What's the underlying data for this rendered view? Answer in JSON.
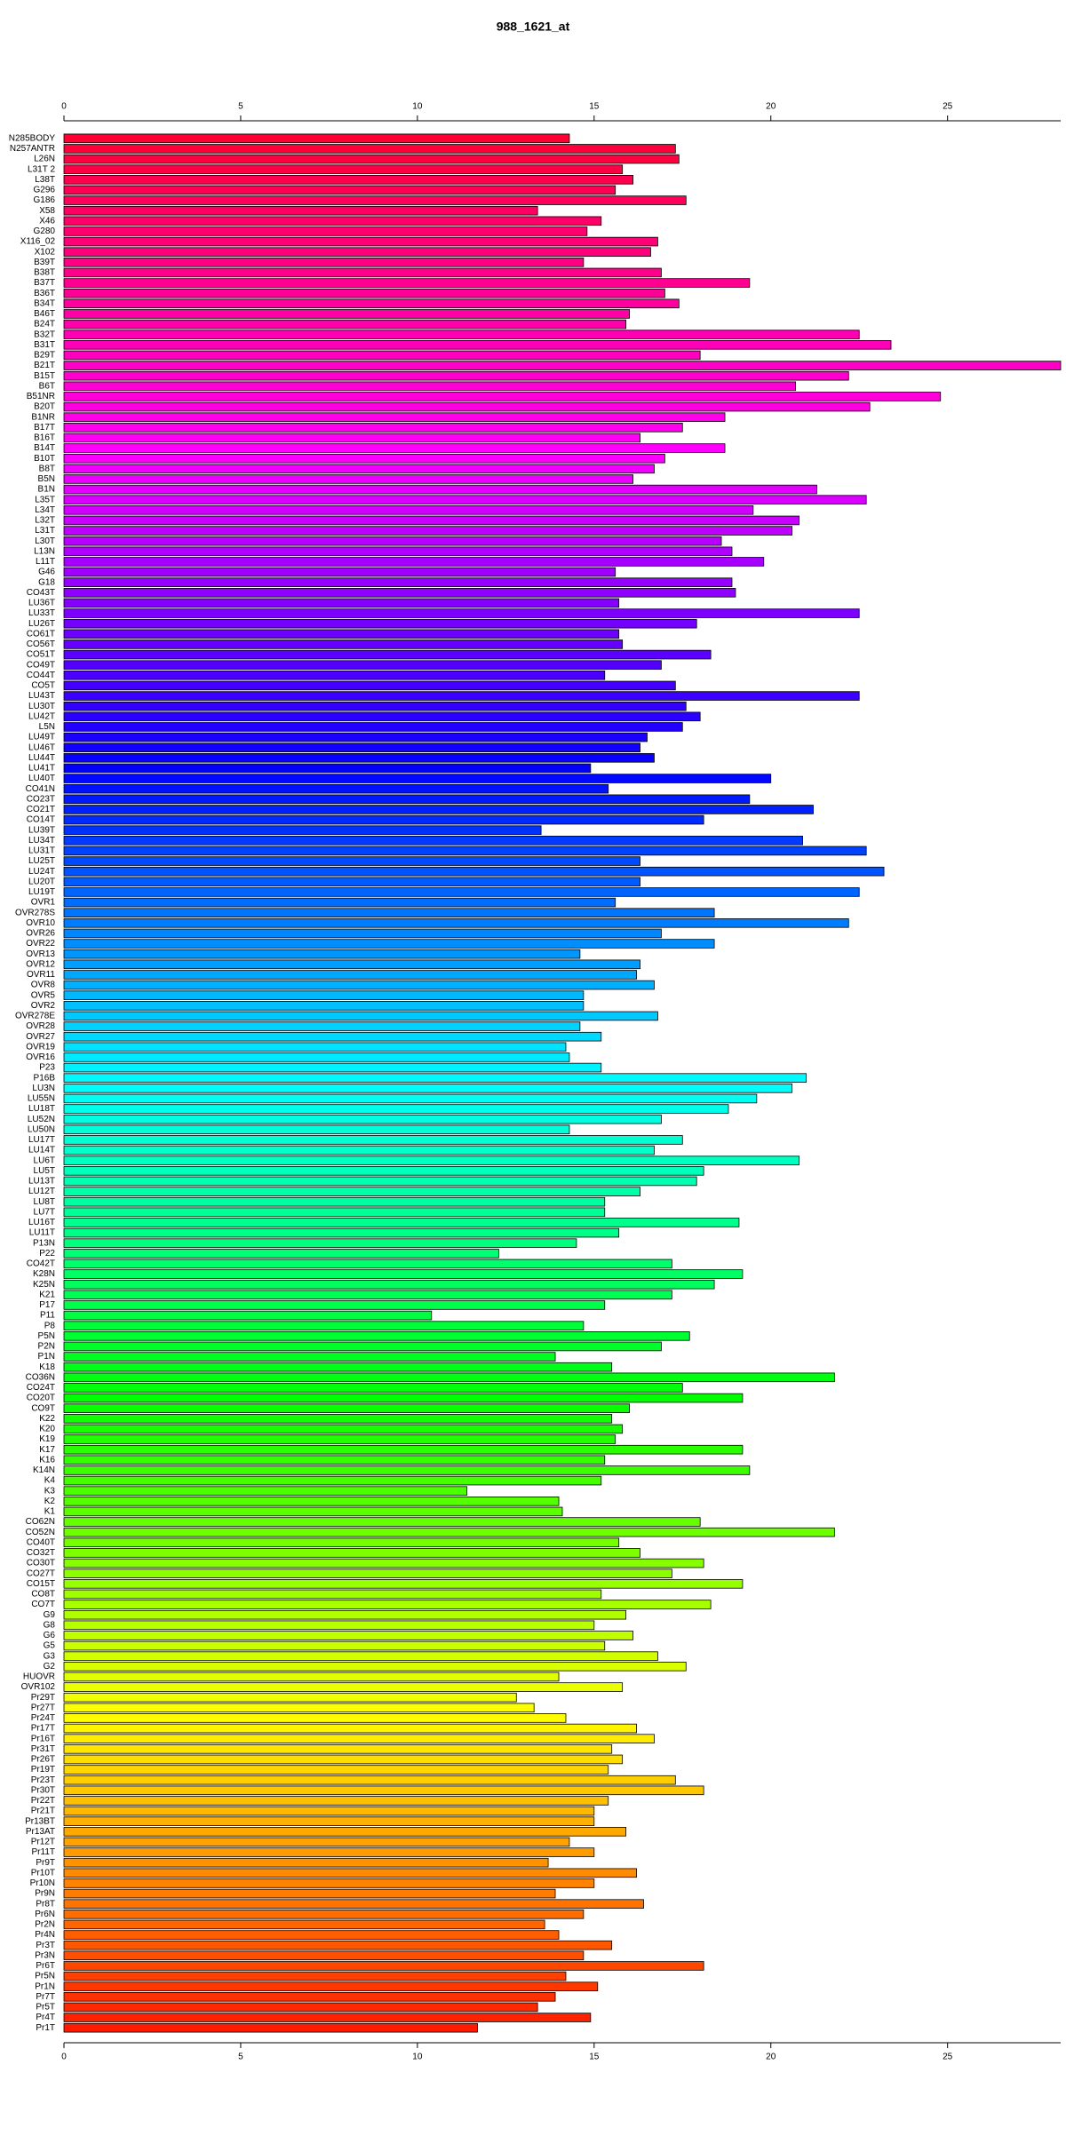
{
  "chart_data": {
    "type": "barh",
    "title": "988_1621_at",
    "categories": [
      "N285BODY",
      "N257ANTR",
      "L26N",
      "L31T 2",
      "L38T",
      "G296",
      "G186",
      "X58",
      "X46",
      "G280",
      "X116_02",
      "X102",
      "B39T",
      "B38T",
      "B37T",
      "B36T",
      "B34T",
      "B46T",
      "B24T",
      "B32T",
      "B31T",
      "B29T",
      "B21T",
      "B15T",
      "B6T",
      "B51NR",
      "B20T",
      "B1NR",
      "B17T",
      "B16T",
      "B14T",
      "B10T",
      "B8T",
      "B5N",
      "B1N",
      "L35T",
      "L34T",
      "L32T",
      "L31T",
      "L30T",
      "L13N",
      "L11T",
      "G46",
      "G18",
      "CO43T",
      "LU36T",
      "LU33T",
      "LU26T",
      "CO61T",
      "CO56T",
      "CO51T",
      "CO49T",
      "CO44T",
      "CO5T",
      "LU43T",
      "LU30T",
      "LU42T",
      "L5N",
      "LU49T",
      "LU46T",
      "LU44T",
      "LU41T",
      "LU40T",
      "CO41N",
      "CO23T",
      "CO21T",
      "CO14T",
      "LU39T",
      "LU34T",
      "LU31T",
      "LU25T",
      "LU24T",
      "LU20T",
      "LU19T",
      "OVR1",
      "OVR278S",
      "OVR10",
      "OVR26",
      "OVR22",
      "OVR13",
      "OVR12",
      "OVR11",
      "OVR8",
      "OVR5",
      "OVR2",
      "OVR278E",
      "OVR28",
      "OVR27",
      "OVR19",
      "OVR16",
      "P23",
      "P16B",
      "LU3N",
      "LU55N",
      "LU18T",
      "LU52N",
      "LU50N",
      "LU17T",
      "LU14T",
      "LU6T",
      "LU5T",
      "LU13T",
      "LU12T",
      "LU8T",
      "LU7T",
      "LU16T",
      "LU11T",
      "P13N",
      "P22",
      "CO42T",
      "K28N",
      "K25N",
      "K21",
      "P17",
      "P11",
      "P8",
      "P5N",
      "P2N",
      "P1N",
      "K18",
      "CO36N",
      "CO24T",
      "CO20T",
      "CO9T",
      "K22",
      "K20",
      "K19",
      "K17",
      "K16",
      "K14N",
      "K4",
      "K3",
      "K2",
      "K1",
      "CO62N",
      "CO52N",
      "CO40T",
      "CO32T",
      "CO30T",
      "CO27T",
      "CO15T",
      "CO8T",
      "CO7T",
      "G9",
      "G8",
      "G6",
      "G5",
      "G3",
      "G2",
      "HUOVR",
      "OVR102",
      "Pr29T",
      "Pr27T",
      "Pr24T",
      "Pr17T",
      "Pr16T",
      "Pr31T",
      "Pr26T",
      "Pr19T",
      "Pr23T",
      "Pr30T",
      "Pr22T",
      "Pr21T",
      "Pr13BT",
      "Pr13AT",
      "Pr12T",
      "Pr11T",
      "Pr9T",
      "Pr10T",
      "Pr10N",
      "Pr9N",
      "Pr8T",
      "Pr6N",
      "Pr2N",
      "Pr4N",
      "Pr3T",
      "Pr3N",
      "Pr6T",
      "Pr5N",
      "Pr1N",
      "Pr7T",
      "Pr5T",
      "Pr4T",
      "Pr1T"
    ],
    "values": [
      14.3,
      17.3,
      17.4,
      15.8,
      16.1,
      15.6,
      17.6,
      13.4,
      15.2,
      14.8,
      16.8,
      16.6,
      14.7,
      16.9,
      19.4,
      17.0,
      17.4,
      16.0,
      15.9,
      22.5,
      23.4,
      18.0,
      28.2,
      22.2,
      20.7,
      24.8,
      22.8,
      18.7,
      17.5,
      16.3,
      18.7,
      17.0,
      16.7,
      16.1,
      21.3,
      22.7,
      19.5,
      20.8,
      20.6,
      18.6,
      18.9,
      19.8,
      15.6,
      18.9,
      19.0,
      15.7,
      22.5,
      17.9,
      15.7,
      15.8,
      18.3,
      16.9,
      15.3,
      17.3,
      22.5,
      17.6,
      18.0,
      17.5,
      16.5,
      16.3,
      16.7,
      14.9,
      20.0,
      15.4,
      19.4,
      21.2,
      18.1,
      13.5,
      20.9,
      22.7,
      16.3,
      23.2,
      16.3,
      22.5,
      15.6,
      18.4,
      22.2,
      16.9,
      18.4,
      14.6,
      16.3,
      16.2,
      16.7,
      14.7,
      14.7,
      16.8,
      14.6,
      15.2,
      14.2,
      14.3,
      15.2,
      21.0,
      20.6,
      19.6,
      18.8,
      16.9,
      14.3,
      17.5,
      16.7,
      20.8,
      18.1,
      17.9,
      16.3,
      15.3,
      15.3,
      19.1,
      15.7,
      14.5,
      12.3,
      17.2,
      19.2,
      18.4,
      17.2,
      15.3,
      10.4,
      14.7,
      17.7,
      16.9,
      13.9,
      15.5,
      21.8,
      17.5,
      19.2,
      16.0,
      15.5,
      15.8,
      15.6,
      19.2,
      15.3,
      19.4,
      15.2,
      11.4,
      14.0,
      14.1,
      18.0,
      21.8,
      15.7,
      16.3,
      18.1,
      17.2,
      19.2,
      15.2,
      18.3,
      15.9,
      15.0,
      16.1,
      15.3,
      16.8,
      17.6,
      14.0,
      15.8,
      12.8,
      13.3,
      14.2,
      16.2,
      16.7,
      15.5,
      15.8,
      15.4,
      17.3,
      18.1,
      15.4,
      15.0,
      15.0,
      15.9,
      14.3,
      15.0,
      13.7,
      16.2,
      15.0,
      13.9,
      16.4,
      14.7,
      13.6,
      14.0,
      15.5,
      14.7,
      18.1,
      14.2,
      15.1,
      13.9,
      13.4,
      14.9,
      11.7
    ],
    "colors": [
      "#ff0033",
      "#ff00ff",
      "#0000ff",
      "#00ffff",
      "#00ff00",
      "#ffff00",
      "#ff1a00"
    ],
    "xlim": [
      0,
      28.2
    ],
    "xticks": [
      0,
      5,
      10,
      15,
      20,
      25
    ]
  }
}
